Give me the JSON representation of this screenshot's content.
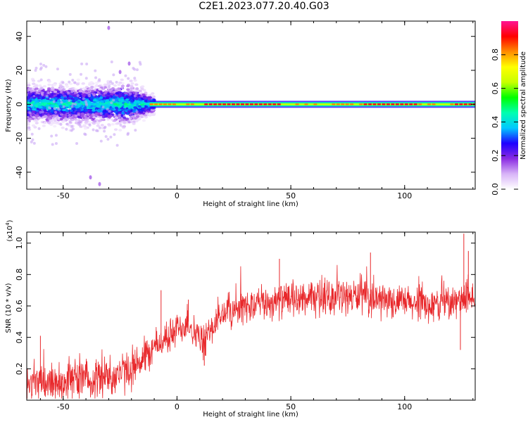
{
  "title": "C2E1.2023.077.20.40.G03",
  "chart_data": [
    {
      "type": "heatmap",
      "name": "spectrogram",
      "xlabel": "Height of straight line (km)",
      "ylabel": "Frequency (Hz)",
      "xlim": [
        -66,
        131
      ],
      "ylim": [
        -50,
        49
      ],
      "xticks": [
        -50,
        0,
        50,
        100
      ],
      "yticks": [
        -40,
        -20,
        0,
        20,
        40
      ],
      "ridge_frequency_hz": 0,
      "colorbar": {
        "label": "Normalized spectral amplitude",
        "range": [
          0,
          1
        ],
        "ticks": [
          0.0,
          0.2,
          0.4,
          0.6,
          0.8
        ],
        "colors": [
          "#ffffff",
          "#d8b4f8",
          "#8a2be2",
          "#1e00ff",
          "#00c8ff",
          "#00ffb0",
          "#00ff00",
          "#c8ff00",
          "#ffff00",
          "#ff8c00",
          "#ff0000",
          "#ff1493"
        ]
      }
    },
    {
      "type": "line",
      "name": "snr",
      "xlabel": "Height of straight line (km)",
      "ylabel": "SNR (10 * v/v)",
      "multiplier": "(x10",
      "multiplier_exp": "4",
      "multiplier_close": ")",
      "xlim": [
        -66,
        131
      ],
      "ylim": [
        0,
        1.07
      ],
      "xticks": [
        -50,
        0,
        50,
        100
      ],
      "yticks": [
        0.2,
        0.4,
        0.6,
        0.8,
        1.0
      ],
      "ytick_labels": [
        "0.2",
        "0.4",
        "0.6",
        "0.8",
        "1.0"
      ],
      "color": "#e8272a",
      "trend": [
        {
          "x": -66,
          "y": 0.1
        },
        {
          "x": -50,
          "y": 0.12
        },
        {
          "x": -35,
          "y": 0.14
        },
        {
          "x": -22,
          "y": 0.18
        },
        {
          "x": -15,
          "y": 0.27
        },
        {
          "x": -8,
          "y": 0.36
        },
        {
          "x": 0,
          "y": 0.44
        },
        {
          "x": 5,
          "y": 0.5
        },
        {
          "x": 8,
          "y": 0.42
        },
        {
          "x": 12,
          "y": 0.36
        },
        {
          "x": 15,
          "y": 0.45
        },
        {
          "x": 20,
          "y": 0.55
        },
        {
          "x": 30,
          "y": 0.6
        },
        {
          "x": 40,
          "y": 0.62
        },
        {
          "x": 50,
          "y": 0.64
        },
        {
          "x": 60,
          "y": 0.64
        },
        {
          "x": 70,
          "y": 0.66
        },
        {
          "x": 80,
          "y": 0.66
        },
        {
          "x": 90,
          "y": 0.63
        },
        {
          "x": 100,
          "y": 0.62
        },
        {
          "x": 110,
          "y": 0.6
        },
        {
          "x": 120,
          "y": 0.62
        },
        {
          "x": 131,
          "y": 0.64
        }
      ],
      "peaks": [
        {
          "x": 126,
          "y": 1.06
        },
        {
          "x": 128,
          "y": 0.95
        },
        {
          "x": 124.5,
          "y": 0.32
        },
        {
          "x": 85,
          "y": 0.94
        },
        {
          "x": 45,
          "y": 0.9
        },
        {
          "x": 5,
          "y": 0.64
        },
        {
          "x": -7,
          "y": 0.7
        },
        {
          "x": 12,
          "y": 0.22
        },
        {
          "x": -60,
          "y": 0.41
        }
      ]
    }
  ]
}
